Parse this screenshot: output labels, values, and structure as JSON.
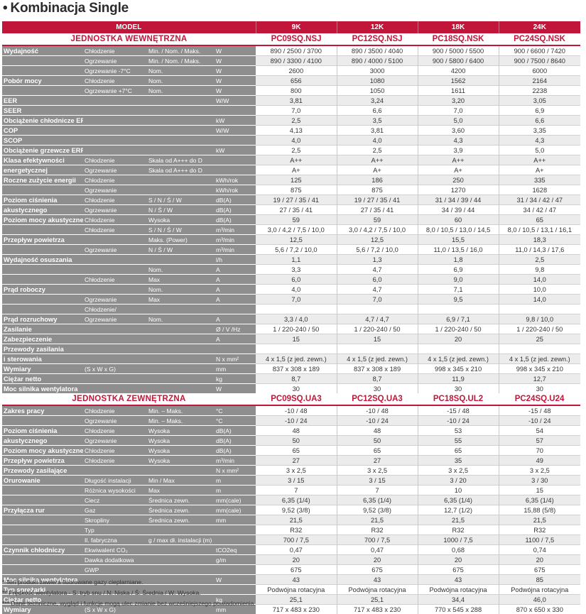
{
  "title": "Kombinacja Single",
  "header": {
    "model": "MODEL",
    "cols": [
      "9K",
      "12K",
      "18K",
      "24K"
    ]
  },
  "indoor": {
    "name": "JEDNOSTKA WEWNĘTRZNA",
    "models": [
      "PC09SQ.NSJ",
      "PC12SQ.NSJ",
      "PC18SQ.NSK",
      "PC24SQ.NSK"
    ]
  },
  "outdoor": {
    "name": "JEDNOSTKA ZEWNĘTRZNA",
    "models": [
      "PC09SQ.UA3",
      "PC12SQ.UA3",
      "PC18SQ.UL2",
      "PC24SQ.U24"
    ]
  },
  "indoor_rows": [
    {
      "l1": "Wydajność",
      "l2": "Chłodzenie",
      "l3": "Min. / Nom. / Maks.",
      "u": "W",
      "v": [
        "890 / 2500 / 3700",
        "890 / 3500 / 4040",
        "900 / 5000 / 5500",
        "900 / 6600 / 7420"
      ]
    },
    {
      "l1": "",
      "l2": "Ogrzewanie",
      "l3": "Min. / Nom. / Maks.",
      "u": "W",
      "v": [
        "890 / 3300 / 4100",
        "890 / 4000 / 5100",
        "900 / 5800 / 6400",
        "900 / 7500 / 8640"
      ]
    },
    {
      "l1": "",
      "l2": "Ogrzewanie -7°C",
      "l3": "Nom.",
      "u": "W",
      "v": [
        "2600",
        "3000",
        "4200",
        "6000"
      ]
    },
    {
      "l1": "Pobór mocy",
      "l2": "Chłodzenie",
      "l3": "Nom.",
      "u": "W",
      "v": [
        "656",
        "1080",
        "1562",
        "2164"
      ]
    },
    {
      "l1": "",
      "l2": "Ogrzewanie +7°C",
      "l3": "Nom.",
      "u": "W",
      "v": [
        "800",
        "1050",
        "1611",
        "2238"
      ]
    },
    {
      "l1": "EER",
      "l2": "",
      "l3": "",
      "u": "W/W",
      "v": [
        "3,81",
        "3,24",
        "3,20",
        "3,05"
      ]
    },
    {
      "l1": "SEER",
      "l2": "",
      "l3": "",
      "u": "",
      "v": [
        "7,0",
        "6,6",
        "7,0",
        "6,9"
      ]
    },
    {
      "l1": "Obciążenie chłodnicze ERP",
      "l2": "",
      "l3": "",
      "u": "kW",
      "v": [
        "2,5",
        "3,5",
        "5,0",
        "6,6"
      ]
    },
    {
      "l1": "COP",
      "l2": "",
      "l3": "",
      "u": "W/W",
      "v": [
        "4,13",
        "3,81",
        "3,60",
        "3,35"
      ]
    },
    {
      "l1": "SCOP",
      "l2": "",
      "l3": "",
      "u": "",
      "v": [
        "4,0",
        "4,0",
        "4,3",
        "4,3"
      ]
    },
    {
      "l1": "Obciążenie grzewcze ERP",
      "l2": "",
      "l3": "",
      "u": "kW",
      "v": [
        "2,5",
        "2,5",
        "3,9",
        "5,0"
      ]
    },
    {
      "l1": "Klasa efektywności",
      "l2": "Chłodzenie",
      "l3": "Skala od A+++ do D",
      "u": "",
      "v": [
        "A++",
        "A++",
        "A++",
        "A++"
      ]
    },
    {
      "l1": "energetycznej",
      "l2": "Ogrzewanie",
      "l3": "Skala od A+++ do D",
      "u": "",
      "v": [
        "A+",
        "A+",
        "A+",
        "A+"
      ]
    },
    {
      "l1": "Roczne zużycie energii",
      "l2": "Chłodzenie",
      "l3": "",
      "u": "kWh/rok",
      "v": [
        "125",
        "186",
        "250",
        "335"
      ]
    },
    {
      "l1": "",
      "l2": "Ogrzewanie",
      "l3": "",
      "u": "kWh/rok",
      "v": [
        "875",
        "875",
        "1270",
        "1628"
      ]
    },
    {
      "l1": "Poziom ciśnienia",
      "l2": "Chłodzenie",
      "l3": "S / N / Ś / W",
      "u": "dB(A)",
      "v": [
        "19 / 27 / 35 / 41",
        "19 / 27 / 35 / 41",
        "31 / 34 / 39 / 44",
        "31 / 34 / 42 / 47"
      ]
    },
    {
      "l1": "akustycznego",
      "l2": "Ogrzewanie",
      "l3": "N / Ś / W",
      "u": "dB(A)",
      "v": [
        "27 / 35 / 41",
        "27 / 35 / 41",
        "34 / 39 / 44",
        "34 / 42 / 47"
      ]
    },
    {
      "l1": "Poziom mocy akustycznej",
      "l2": "Chłodzenie",
      "l3": "Wysoka",
      "u": "dB(A)",
      "v": [
        "59",
        "59",
        "60",
        "65"
      ]
    },
    {
      "l1": "",
      "l2": "Chłodzenie",
      "l3": "S / N / Ś / W",
      "u": "m³/min",
      "v": [
        "3,0 / 4,2 / 7,5 / 10,0",
        "3,0 / 4,2 / 7,5 / 10,0",
        "8,0 / 10,5 / 13,0 / 14,5",
        "8,0 / 10,5 / 13,1 / 16,1"
      ]
    },
    {
      "l1": "Przepływ powietrza",
      "l2": "",
      "l3": "Maks. (Power)",
      "u": "m³/min",
      "v": [
        "12,5",
        "12,5",
        "15,5",
        "18,3"
      ]
    },
    {
      "l1": "",
      "l2": "Ogrzewanie",
      "l3": "N / Ś / W",
      "u": "m³/min",
      "v": [
        "5,6 / 7,2 / 10,0",
        "5,6 / 7,2 / 10,0",
        "11,0 / 13,5 / 16,0",
        "11,0 / 14,3 / 17,6"
      ]
    },
    {
      "l1": "Wydajność osuszania",
      "l2": "",
      "l3": "",
      "u": "l/h",
      "v": [
        "1,1",
        "1,3",
        "1,8",
        "2,5"
      ]
    },
    {
      "l1": "",
      "l2": "",
      "l3": "Nom.",
      "u": "A",
      "v": [
        "3,3",
        "4,7",
        "6,9",
        "9,8"
      ]
    },
    {
      "l1": "",
      "l2": "Chłodzenie",
      "l3": "Max",
      "u": "A",
      "v": [
        "6,0",
        "6,0",
        "9,0",
        "14,0"
      ]
    },
    {
      "l1": "Prąd roboczy",
      "l2": "",
      "l3": "Nom.",
      "u": "A",
      "v": [
        "4,0",
        "4,7",
        "7,1",
        "10,0"
      ]
    },
    {
      "l1": "",
      "l2": "Ogrzewanie",
      "l3": "Max",
      "u": "A",
      "v": [
        "7,0",
        "7,0",
        "9,5",
        "14,0"
      ]
    },
    {
      "l1": "",
      "l2": "Chłodzenie/",
      "l3": "",
      "u": "",
      "v": [
        "",
        "",
        "",
        ""
      ]
    },
    {
      "l1": "Prąd rozruchowy",
      "l2": "Ogrzewanie",
      "l3": "Nom.",
      "u": "A",
      "v": [
        "3,3 / 4,0",
        "4,7 / 4,7",
        "6,9 / 7,1",
        "9,8 / 10,0"
      ]
    },
    {
      "l1": "Zasilanie",
      "l2": "",
      "l3": "",
      "u": "Ø / V /Hz",
      "v": [
        "1 / 220-240 / 50",
        "1 / 220-240 / 50",
        "1 / 220-240 / 50",
        "1 / 220-240 / 50"
      ]
    },
    {
      "l1": "Zabezpieczenie",
      "l2": "",
      "l3": "",
      "u": "A",
      "v": [
        "15",
        "15",
        "20",
        "25"
      ]
    },
    {
      "l1": "Przewody zasilania",
      "l2": "",
      "l3": "",
      "u": "",
      "v": [
        "",
        "",
        "",
        ""
      ]
    },
    {
      "l1": "i sterowania",
      "l2": "",
      "l3": "",
      "u": "N x mm²",
      "v": [
        "4 x 1,5 (z jed. zewn.)",
        "4 x 1,5 (z jed. zewn.)",
        "4 x 1,5 (z jed. zewn.)",
        "4 x 1,5 (z jed. zewn.)"
      ]
    },
    {
      "l1": "Wymiary",
      "l2": "(S x W x G)",
      "l3": "",
      "u": "mm",
      "v": [
        "837 x 308 x 189",
        "837 x 308 x 189",
        "998 x 345 x 210",
        "998 x 345 x 210"
      ]
    },
    {
      "l1": "Ciężar netto",
      "l2": "",
      "l3": "",
      "u": "kg",
      "v": [
        "8,7",
        "8,7",
        "11,9",
        "12,7"
      ]
    },
    {
      "l1": "Moc silnika wentylatora",
      "l2": "",
      "l3": "",
      "u": "W",
      "v": [
        "30",
        "30",
        "30",
        "30"
      ]
    }
  ],
  "outdoor_rows": [
    {
      "l1": "Zakres pracy",
      "l2": "Chłodzenie",
      "l3": "Min. – Maks.",
      "u": "°C",
      "v": [
        "-10 / 48",
        "-10 / 48",
        "-15 / 48",
        "-15 / 48"
      ]
    },
    {
      "l1": "",
      "l2": "Ogrzewanie",
      "l3": "Min. – Maks.",
      "u": "°C",
      "v": [
        "-10 / 24",
        "-10 / 24",
        "-10 / 24",
        "-10 / 24"
      ]
    },
    {
      "l1": "Poziom ciśnienia",
      "l2": "Chłodzenie",
      "l3": "Wysoka",
      "u": "dB(A)",
      "v": [
        "48",
        "48",
        "53",
        "54"
      ]
    },
    {
      "l1": "akustycznego",
      "l2": "Ogrzewanie",
      "l3": "Wysoka",
      "u": "dB(A)",
      "v": [
        "50",
        "50",
        "55",
        "57"
      ]
    },
    {
      "l1": "Poziom mocy akustycznej",
      "l2": "Chłodzenie",
      "l3": "Wysoka",
      "u": "dB(A)",
      "v": [
        "65",
        "65",
        "65",
        "70"
      ]
    },
    {
      "l1": "Przepływ powietrza",
      "l2": "Chłodzenie",
      "l3": "Wysoka",
      "u": "m³/min",
      "v": [
        "27",
        "27",
        "35",
        "49"
      ]
    },
    {
      "l1": "Przewody zasilające",
      "l2": "",
      "l3": "",
      "u": "N x mm²",
      "v": [
        "3 x 2,5",
        "3 x 2,5",
        "3 x 2,5",
        "3 x 2,5"
      ]
    },
    {
      "l1": "Orurowanie",
      "l2": "Długość instalacji",
      "l3": "Min / Max",
      "u": "m",
      "v": [
        "3 / 15",
        "3 / 15",
        "3 / 20",
        "3 / 30"
      ]
    },
    {
      "l1": "",
      "l2": "Różnica wysokości",
      "l3": "Max",
      "u": "m",
      "v": [
        "7",
        "7",
        "10",
        "15"
      ]
    },
    {
      "l1": "",
      "l2": "Ciecz",
      "l3": "Średnica zewn.",
      "u": "mm(cale)",
      "v": [
        "6,35 (1/4)",
        "6,35 (1/4)",
        "6,35 (1/4)",
        "6,35 (1/4)"
      ]
    },
    {
      "l1": "Przyłącza rur",
      "l2": "Gaz",
      "l3": "Średnica zewn.",
      "u": "mm(cale)",
      "v": [
        "9,52 (3/8)",
        "9,52 (3/8)",
        "12,7 (1/2)",
        "15,88 (5/8)"
      ]
    },
    {
      "l1": "",
      "l2": "Skropliny",
      "l3": "Średnica zewn.",
      "u": "mm",
      "v": [
        "21,5",
        "21,5",
        "21,5",
        "21,5"
      ]
    },
    {
      "l1": "",
      "l2": "Typ",
      "l3": "",
      "u": "",
      "v": [
        "R32",
        "R32",
        "R32",
        "R32"
      ]
    },
    {
      "l1": "",
      "l2": "Il. fabryczna",
      "l3": "g / max dł. instalacji (m)",
      "u": "",
      "v": [
        "700 / 7,5",
        "700 / 7,5",
        "1000 / 7,5",
        "1100 / 7,5"
      ]
    },
    {
      "l1": "Czynnik chłodniczy",
      "l2": "Ekwiwalent CO₂",
      "l3": "",
      "u": "tCO2eq",
      "v": [
        "0,47",
        "0,47",
        "0,68",
        "0,74"
      ]
    },
    {
      "l1": "",
      "l2": "Dawka dodatkowa",
      "l3": "",
      "u": "g/m",
      "v": [
        "20",
        "20",
        "20",
        "20"
      ]
    },
    {
      "l1": "",
      "l2": "GWP",
      "l3": "",
      "u": "",
      "v": [
        "675",
        "675",
        "675",
        "675"
      ]
    },
    {
      "l1": "Moc silnika wentylatora",
      "l2": "",
      "l3": "",
      "u": "W",
      "v": [
        "43",
        "43",
        "43",
        "85"
      ]
    },
    {
      "l1": "Typ sprężarki",
      "l2": "",
      "l3": "",
      "u": "",
      "v": [
        "Podwójna rotacyjna",
        "Podwójna rotacyjna",
        "Podwójna rotacyjna",
        "Podwójna rotacyjna"
      ]
    },
    {
      "l1": "Ciężar netto",
      "l2": "",
      "l3": "",
      "u": "kg",
      "v": [
        "25,1",
        "25,1",
        "34,4",
        "46,0"
      ]
    },
    {
      "l1": "Wymiary",
      "l2": "(S x W x G)",
      "l3": "",
      "u": "mm",
      "v": [
        "717 x 483 x 230",
        "717 x 483 x 230",
        "770 x 545 x 288",
        "870 x 650 x 330"
      ]
    }
  ],
  "notes": [
    "* Ten produkt zawiera fluorowane gazy cieplarniane.",
    "** Prędkość wentylatora - S: tryb snu / N: Niska / Ś: Średnia / W: Wysoka.",
    "*** Dane techniczne, wygląd i funkcje mogą ulec zmianie bez wcześniejszego powiadomienia."
  ]
}
